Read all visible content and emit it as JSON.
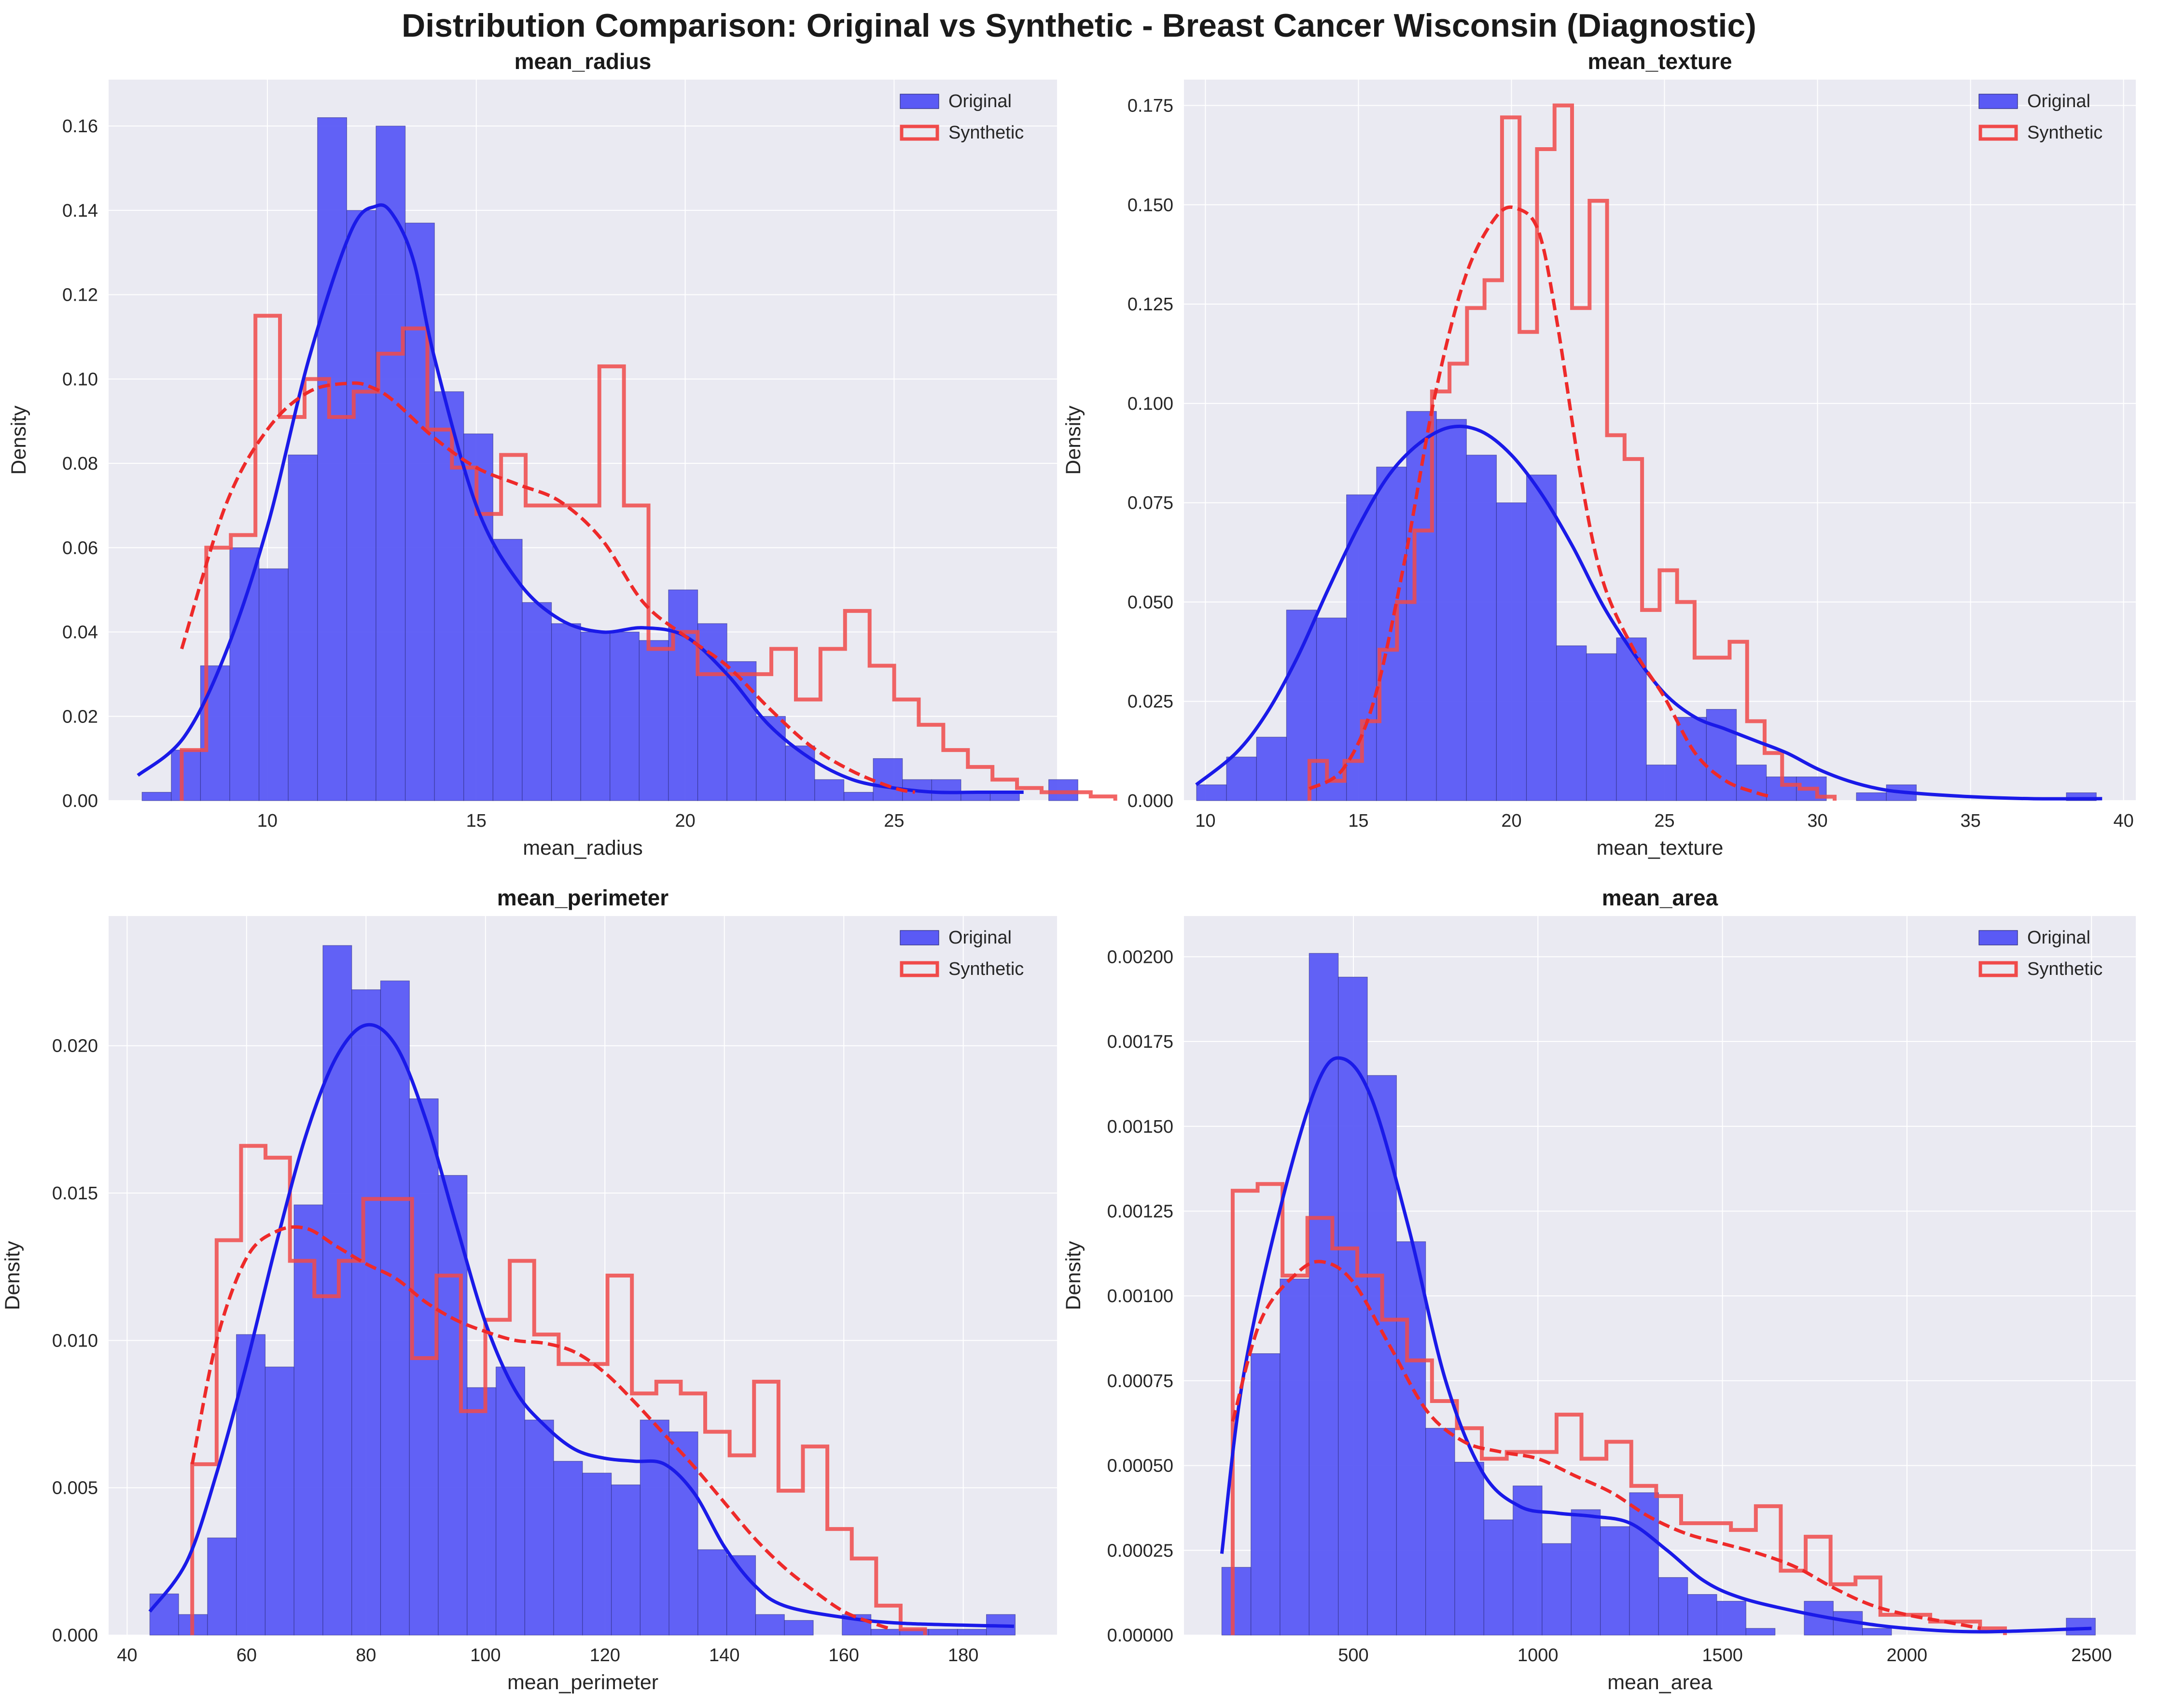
{
  "title": "Distribution Comparison: Original vs Synthetic - Breast Cancer Wisconsin (Diagnostic)",
  "legend": {
    "original": "Original",
    "synthetic": "Synthetic",
    "placement": "top-right"
  },
  "colors": {
    "original_fill": "#5a5af5",
    "original_line": "#1a1ae8",
    "synthetic_line": "#f04a4a",
    "synthetic_kde": "#ee2a2a",
    "background": "#eaeaf2",
    "grid": "#ffffff"
  },
  "chart_data": [
    {
      "type": "histogram",
      "title": "mean_radius",
      "xlabel": "mean_radius",
      "ylabel": "Density",
      "xlim": [
        6.2,
        28.9
      ],
      "ylim": [
        0,
        0.171
      ],
      "xticks": [
        10,
        15,
        20,
        25
      ],
      "yticks": [
        0.0,
        0.02,
        0.04,
        0.06,
        0.08,
        0.1,
        0.12,
        0.14,
        0.16
      ],
      "ytick_labels": [
        "0.00",
        "0.02",
        "0.04",
        "0.06",
        "0.08",
        "0.10",
        "0.12",
        "0.14",
        "0.16"
      ],
      "grid": true,
      "original_hist": {
        "start": 7.0,
        "width": 0.7,
        "values": [
          0.002,
          0.012,
          0.032,
          0.06,
          0.055,
          0.082,
          0.162,
          0.14,
          0.16,
          0.137,
          0.097,
          0.087,
          0.062,
          0.047,
          0.042,
          0.04,
          0.04,
          0.038,
          0.05,
          0.042,
          0.033,
          0.02,
          0.013,
          0.005,
          0.002,
          0.01,
          0.005,
          0.005,
          0.002,
          0.002,
          0.0,
          0.005
        ]
      },
      "original_kde": [
        [
          6.9,
          0.006
        ],
        [
          8,
          0.015
        ],
        [
          9,
          0.035
        ],
        [
          10,
          0.065
        ],
        [
          11,
          0.105
        ],
        [
          12,
          0.135
        ],
        [
          12.6,
          0.141
        ],
        [
          13,
          0.139
        ],
        [
          13.5,
          0.128
        ],
        [
          14,
          0.105
        ],
        [
          15,
          0.07
        ],
        [
          16,
          0.052
        ],
        [
          17,
          0.043
        ],
        [
          18,
          0.04
        ],
        [
          19,
          0.041
        ],
        [
          20,
          0.039
        ],
        [
          21,
          0.03
        ],
        [
          22,
          0.018
        ],
        [
          23,
          0.01
        ],
        [
          24,
          0.005
        ],
        [
          25,
          0.003
        ],
        [
          26,
          0.002
        ],
        [
          27,
          0.002
        ],
        [
          28.1,
          0.002
        ]
      ],
      "synthetic_hist": {
        "start": 7.95,
        "width": 0.588,
        "values": [
          0.012,
          0.06,
          0.063,
          0.115,
          0.091,
          0.1,
          0.091,
          0.097,
          0.106,
          0.112,
          0.088,
          0.079,
          0.068,
          0.082,
          0.07,
          0.07,
          0.07,
          0.103,
          0.07,
          0.036,
          0.04,
          0.03,
          0.03,
          0.03,
          0.036,
          0.024,
          0.036,
          0.045,
          0.032,
          0.024,
          0.018,
          0.012,
          0.008,
          0.005,
          0.003,
          0.002,
          0.002,
          0.001
        ]
      },
      "synthetic_kde": [
        [
          7.95,
          0.036
        ],
        [
          9,
          0.07
        ],
        [
          10,
          0.088
        ],
        [
          11,
          0.097
        ],
        [
          12,
          0.099
        ],
        [
          12.5,
          0.098
        ],
        [
          13,
          0.095
        ],
        [
          14,
          0.086
        ],
        [
          15,
          0.079
        ],
        [
          16,
          0.075
        ],
        [
          17,
          0.071
        ],
        [
          18,
          0.062
        ],
        [
          19,
          0.047
        ],
        [
          20,
          0.039
        ],
        [
          21,
          0.032
        ],
        [
          22,
          0.022
        ],
        [
          23,
          0.013
        ],
        [
          24,
          0.007
        ],
        [
          25,
          0.003
        ],
        [
          25.5,
          0.002
        ]
      ]
    },
    {
      "type": "histogram",
      "title": "mean_texture",
      "xlabel": "mean_texture",
      "ylabel": "Density",
      "xlim": [
        9.3,
        40.4
      ],
      "ylim": [
        0,
        0.1815
      ],
      "xticks": [
        10,
        15,
        20,
        25,
        30,
        35,
        40
      ],
      "yticks": [
        0.0,
        0.025,
        0.05,
        0.075,
        0.1,
        0.125,
        0.15,
        0.175
      ],
      "ytick_labels": [
        "0.000",
        "0.025",
        "0.050",
        "0.075",
        "0.100",
        "0.125",
        "0.150",
        "0.175"
      ],
      "grid": true,
      "original_hist": {
        "start": 9.71,
        "width": 0.98,
        "values": [
          0.004,
          0.011,
          0.016,
          0.048,
          0.046,
          0.077,
          0.084,
          0.098,
          0.096,
          0.087,
          0.075,
          0.082,
          0.039,
          0.037,
          0.041,
          0.009,
          0.021,
          0.023,
          0.009,
          0.006,
          0.006,
          0.0,
          0.002,
          0.004,
          0.0,
          0.0,
          0.0,
          0.0,
          0.0,
          0.002
        ]
      },
      "original_kde": [
        [
          9.7,
          0.004
        ],
        [
          11,
          0.012
        ],
        [
          12,
          0.022
        ],
        [
          13,
          0.036
        ],
        [
          14,
          0.053
        ],
        [
          15,
          0.069
        ],
        [
          16,
          0.082
        ],
        [
          17,
          0.09
        ],
        [
          18,
          0.094
        ],
        [
          19,
          0.093
        ],
        [
          20,
          0.087
        ],
        [
          21,
          0.077
        ],
        [
          22,
          0.064
        ],
        [
          23,
          0.049
        ],
        [
          24,
          0.037
        ],
        [
          25,
          0.027
        ],
        [
          26,
          0.021
        ],
        [
          27,
          0.018
        ],
        [
          28,
          0.015
        ],
        [
          29,
          0.012
        ],
        [
          30,
          0.008
        ],
        [
          31,
          0.005
        ],
        [
          32,
          0.003
        ],
        [
          33,
          0.002
        ],
        [
          35,
          0.001
        ],
        [
          37,
          0.0005
        ],
        [
          39.3,
          0.0005
        ]
      ],
      "synthetic_hist": {
        "start": 13.4,
        "width": 0.572,
        "values": [
          0.01,
          0.005,
          0.01,
          0.02,
          0.038,
          0.05,
          0.068,
          0.103,
          0.11,
          0.124,
          0.131,
          0.172,
          0.118,
          0.164,
          0.175,
          0.124,
          0.151,
          0.092,
          0.086,
          0.048,
          0.058,
          0.05,
          0.036,
          0.036,
          0.04,
          0.02,
          0.012,
          0.004,
          0.003,
          0.001
        ]
      },
      "synthetic_kde": [
        [
          13.4,
          0.003
        ],
        [
          14.5,
          0.008
        ],
        [
          15.5,
          0.025
        ],
        [
          16.5,
          0.06
        ],
        [
          17.5,
          0.102
        ],
        [
          18.5,
          0.132
        ],
        [
          19.5,
          0.147
        ],
        [
          20.2,
          0.149
        ],
        [
          20.9,
          0.143
        ],
        [
          21.5,
          0.12
        ],
        [
          22.3,
          0.08
        ],
        [
          23,
          0.055
        ],
        [
          24,
          0.038
        ],
        [
          25,
          0.026
        ],
        [
          26,
          0.012
        ],
        [
          27,
          0.005
        ],
        [
          28,
          0.002
        ],
        [
          28.5,
          0.001
        ]
      ]
    },
    {
      "type": "histogram",
      "title": "mean_perimeter",
      "xlabel": "mean_perimeter",
      "ylabel": "Density",
      "xlim": [
        36.9,
        195.7
      ],
      "ylim": [
        0,
        0.0244
      ],
      "xticks": [
        40,
        60,
        80,
        100,
        120,
        140,
        160,
        180
      ],
      "yticks": [
        0.0,
        0.005,
        0.01,
        0.015,
        0.02
      ],
      "ytick_labels": [
        "0.000",
        "0.005",
        "0.010",
        "0.015",
        "0.020"
      ],
      "grid": true,
      "original_hist": {
        "start": 43.8,
        "width": 4.83,
        "values": [
          0.0014,
          0.0007,
          0.0033,
          0.0102,
          0.0091,
          0.0146,
          0.0234,
          0.0219,
          0.0222,
          0.0182,
          0.0156,
          0.0084,
          0.0091,
          0.0073,
          0.0059,
          0.0055,
          0.0051,
          0.0073,
          0.0069,
          0.0029,
          0.0027,
          0.0007,
          0.0005,
          0.0,
          0.0007,
          0.0002,
          0.0002,
          0.0002,
          0.0002,
          0.0007
        ]
      },
      "original_kde": [
        [
          43.8,
          0.0008
        ],
        [
          50,
          0.0025
        ],
        [
          55,
          0.0055
        ],
        [
          60,
          0.0092
        ],
        [
          65,
          0.0133
        ],
        [
          70,
          0.017
        ],
        [
          75,
          0.0196
        ],
        [
          80,
          0.0207
        ],
        [
          85,
          0.02
        ],
        [
          90,
          0.0175
        ],
        [
          95,
          0.014
        ],
        [
          100,
          0.0106
        ],
        [
          105,
          0.0083
        ],
        [
          110,
          0.0071
        ],
        [
          115,
          0.0063
        ],
        [
          120,
          0.006
        ],
        [
          125,
          0.0059
        ],
        [
          130,
          0.0058
        ],
        [
          135,
          0.0048
        ],
        [
          140,
          0.003
        ],
        [
          145,
          0.0017
        ],
        [
          150,
          0.001
        ],
        [
          160,
          0.0006
        ],
        [
          170,
          0.0004
        ],
        [
          188.5,
          0.0003
        ]
      ],
      "synthetic_hist": {
        "start": 50.9,
        "width": 4.09,
        "values": [
          0.0058,
          0.0134,
          0.0166,
          0.0162,
          0.0127,
          0.0115,
          0.0127,
          0.0148,
          0.0148,
          0.0094,
          0.0122,
          0.0076,
          0.0107,
          0.0127,
          0.0102,
          0.0092,
          0.0092,
          0.0122,
          0.0082,
          0.0086,
          0.0082,
          0.0069,
          0.0061,
          0.0086,
          0.0049,
          0.0064,
          0.0036,
          0.0026,
          0.001,
          0.0002
        ]
      },
      "synthetic_kde": [
        [
          50.9,
          0.0058
        ],
        [
          55,
          0.01
        ],
        [
          60,
          0.0128
        ],
        [
          65,
          0.0137
        ],
        [
          70,
          0.0138
        ],
        [
          75,
          0.0132
        ],
        [
          80,
          0.0126
        ],
        [
          85,
          0.0121
        ],
        [
          90,
          0.0113
        ],
        [
          95,
          0.0107
        ],
        [
          100,
          0.0103
        ],
        [
          105,
          0.01
        ],
        [
          110,
          0.0099
        ],
        [
          115,
          0.0096
        ],
        [
          120,
          0.0089
        ],
        [
          125,
          0.0079
        ],
        [
          130,
          0.0068
        ],
        [
          135,
          0.0057
        ],
        [
          140,
          0.0045
        ],
        [
          145,
          0.0033
        ],
        [
          150,
          0.0023
        ],
        [
          155,
          0.0015
        ],
        [
          160,
          0.0008
        ],
        [
          165,
          0.0004
        ],
        [
          168,
          0.0002
        ]
      ]
    },
    {
      "type": "histogram",
      "title": "mean_area",
      "xlabel": "mean_area",
      "ylabel": "Density",
      "xlim": [
        41.0,
        2620.0
      ],
      "ylim": [
        0,
        0.00212
      ],
      "xticks": [
        500,
        1000,
        1500,
        2000,
        2500
      ],
      "yticks": [
        0.0,
        0.00025,
        0.0005,
        0.00075,
        0.001,
        0.00125,
        0.0015,
        0.00175,
        0.002
      ],
      "ytick_labels": [
        "0.00000",
        "0.00025",
        "0.00050",
        "0.00075",
        "0.00100",
        "0.00125",
        "0.00150",
        "0.00175",
        "0.00200"
      ],
      "grid": true,
      "original_hist": {
        "start": 143.5,
        "width": 78.9,
        "values": [
          0.0002,
          0.00083,
          0.00105,
          0.00201,
          0.00194,
          0.00165,
          0.00116,
          0.00061,
          0.00051,
          0.00034,
          0.00044,
          0.00027,
          0.00037,
          0.00032,
          0.00042,
          0.00017,
          0.00012,
          0.0001,
          2e-05,
          0.0,
          0.0001,
          7e-05,
          2e-05,
          0.0,
          0.0,
          0.0,
          0.0,
          0.0,
          0.0,
          5e-05
        ]
      },
      "original_kde": [
        [
          143.5,
          0.00024
        ],
        [
          200,
          0.00075
        ],
        [
          300,
          0.00125
        ],
        [
          400,
          0.00162
        ],
        [
          470,
          0.0017
        ],
        [
          550,
          0.00158
        ],
        [
          650,
          0.0012
        ],
        [
          750,
          0.00075
        ],
        [
          850,
          0.00048
        ],
        [
          950,
          0.00038
        ],
        [
          1050,
          0.00036
        ],
        [
          1150,
          0.00035
        ],
        [
          1250,
          0.00033
        ],
        [
          1350,
          0.00025
        ],
        [
          1450,
          0.00016
        ],
        [
          1550,
          0.00011
        ],
        [
          1700,
          7e-05
        ],
        [
          1850,
          4e-05
        ],
        [
          2000,
          2e-05
        ],
        [
          2200,
          1e-05
        ],
        [
          2500,
          2e-05
        ]
      ],
      "synthetic_hist": {
        "start": 173.0,
        "width": 67.5,
        "values": [
          0.00131,
          0.00133,
          0.00106,
          0.00123,
          0.00114,
          0.00106,
          0.00093,
          0.00081,
          0.00069,
          0.00061,
          0.00052,
          0.00054,
          0.00054,
          0.00065,
          0.00052,
          0.00057,
          0.00044,
          0.00041,
          0.00033,
          0.00033,
          0.00031,
          0.00038,
          0.00019,
          0.00029,
          0.00015,
          0.00017,
          6e-05,
          6e-05,
          4e-05,
          4e-05,
          2e-05
        ]
      },
      "synthetic_kde": [
        [
          173,
          0.00063
        ],
        [
          250,
          0.00093
        ],
        [
          350,
          0.00107
        ],
        [
          420,
          0.0011
        ],
        [
          500,
          0.00104
        ],
        [
          600,
          0.00085
        ],
        [
          700,
          0.00066
        ],
        [
          800,
          0.00057
        ],
        [
          900,
          0.00054
        ],
        [
          1000,
          0.00052
        ],
        [
          1100,
          0.00047
        ],
        [
          1200,
          0.00042
        ],
        [
          1300,
          0.00035
        ],
        [
          1400,
          0.0003
        ],
        [
          1500,
          0.00027
        ],
        [
          1600,
          0.00024
        ],
        [
          1700,
          0.0002
        ],
        [
          1800,
          0.00014
        ],
        [
          1900,
          9e-05
        ],
        [
          2000,
          6e-05
        ],
        [
          2100,
          4e-05
        ],
        [
          2200,
          2e-05
        ]
      ]
    }
  ]
}
